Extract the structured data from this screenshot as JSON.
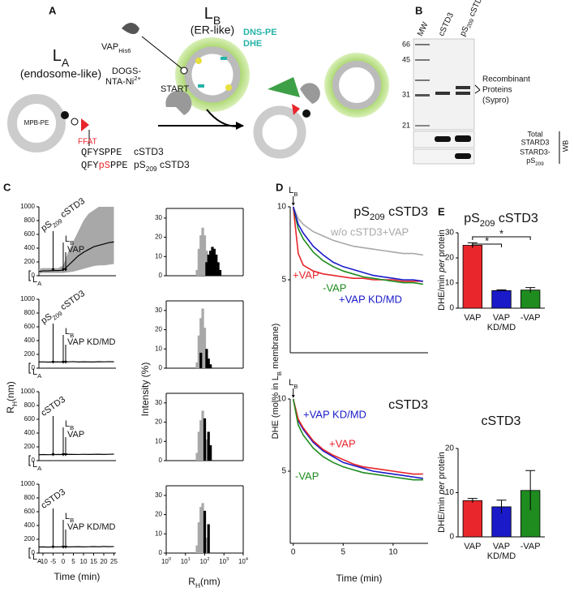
{
  "figure": {
    "panel_labels": [
      "A",
      "B",
      "C",
      "D",
      "E"
    ],
    "diagram": {
      "lb_title": [
        {
          "t": "L"
        },
        {
          "t": "B",
          "sub": true
        }
      ],
      "lb_sub": "(ER-like)",
      "la_title": [
        {
          "t": "L"
        },
        {
          "t": "A",
          "sub": true
        }
      ],
      "la_sub": "(endosome-like)",
      "vap": [
        {
          "t": "VAP"
        },
        {
          "t": "His6",
          "sub": true
        }
      ],
      "dogs1": "DOGS-",
      "dogs2": [
        {
          "t": "NTA-Ni"
        },
        {
          "t": "2+",
          "sup": true
        }
      ],
      "dns": "DNS-PE",
      "dhe": "DHE",
      "start": "START",
      "mpb": "MPB-PE",
      "ffat": "FFAT",
      "seq1": "QFYSPPE",
      "seq1_name": "cSTD3",
      "seq2": [
        {
          "t": "QFY"
        },
        {
          "t": "pS",
          "color": "#e8262b"
        },
        {
          "t": "PPE"
        }
      ],
      "seq2_name": [
        {
          "t": "pS"
        },
        {
          "t": "209",
          "sub": true
        },
        {
          "t": " cSTD3"
        }
      ]
    },
    "gel": {
      "lanes": [
        "MW",
        "cSTD3",
        [
          {
            "t": "pS"
          },
          {
            "t": "209",
            "sub": true
          },
          {
            "t": " cSTD3"
          }
        ]
      ],
      "mw": [
        "66",
        "45",
        "31",
        "21"
      ],
      "sypro": [
        "Recombinant",
        "Proteins",
        "(Sypro)"
      ],
      "total": [
        "Total",
        "STARD3"
      ],
      "phospho": [
        "STARD3-",
        [
          {
            "t": "pS"
          },
          {
            "t": "209",
            "sub": true
          }
        ]
      ],
      "wb": "WB"
    }
  },
  "chart_data": [
    {
      "type": "line",
      "x": [
        -12,
        -10,
        -7.5,
        -5,
        -2.5,
        0,
        2.5,
        5,
        7.5,
        10,
        12.5,
        15,
        17.5,
        20,
        22.5,
        25
      ],
      "series": [
        {
          "color": "#000000",
          "values": [
            60,
            70,
            70,
            75,
            75,
            80,
            150,
            220,
            290,
            340,
            380,
            420,
            440,
            460,
            480,
            490
          ]
        }
      ],
      "band": {
        "color": "#a8a8a8",
        "upper": [
          100,
          110,
          110,
          110,
          110,
          150,
          350,
          500,
          650,
          800,
          900,
          950,
          1000,
          1000,
          1000,
          1000
        ],
        "lower": [
          30,
          40,
          40,
          40,
          40,
          40,
          50,
          60,
          80,
          100,
          120,
          140,
          150,
          150,
          160,
          170
        ]
      },
      "xlim": [
        -12,
        26
      ],
      "ylim": [
        0,
        1000
      ],
      "yticks": [
        0,
        200,
        400,
        600,
        800,
        1000
      ],
      "annotations": [
        [
          {
            "t": "pS"
          },
          {
            "t": "209",
            "sub": true
          },
          {
            "t": " cSTD3"
          }
        ],
        [
          {
            "t": "L"
          },
          {
            "t": "B",
            "sub": true
          }
        ],
        "VAP",
        [
          {
            "t": "L"
          },
          {
            "t": "A",
            "sub": true
          }
        ]
      ],
      "ylabel": [
        {
          "t": "R"
        },
        {
          "t": "H",
          "sub": true
        },
        {
          "t": "(nm)"
        }
      ]
    },
    {
      "type": "line",
      "x": [
        -12,
        -10,
        -7.5,
        -5,
        -2.5,
        0,
        2.5,
        5,
        7.5,
        10,
        12.5,
        15,
        17.5,
        20,
        22.5,
        25
      ],
      "series": [
        {
          "color": "#000000",
          "values": [
            90,
            92,
            88,
            90,
            91,
            89,
            92,
            95,
            90,
            93,
            91,
            90,
            94,
            92,
            95,
            93
          ]
        }
      ],
      "xlim": [
        -12,
        26
      ],
      "ylim": [
        0,
        1000
      ],
      "yticks": [
        0,
        200,
        400,
        600,
        800,
        1000
      ],
      "annotations": [
        [
          {
            "t": "pS"
          },
          {
            "t": "209",
            "sub": true
          },
          {
            "t": " cSTD3"
          }
        ],
        [
          {
            "t": "L"
          },
          {
            "t": "B",
            "sub": true
          }
        ],
        "VAP KD/MD",
        [
          {
            "t": "L"
          },
          {
            "t": "A",
            "sub": true
          }
        ]
      ]
    },
    {
      "type": "line",
      "x": [
        -12,
        -10,
        -7.5,
        -5,
        -2.5,
        0,
        2.5,
        5,
        7.5,
        10,
        12.5,
        15,
        17.5,
        20,
        22.5,
        25
      ],
      "series": [
        {
          "color": "#000000",
          "values": [
            85,
            88,
            86,
            87,
            90,
            88,
            91,
            90,
            89,
            92,
            90,
            91,
            93,
            90,
            92,
            94
          ]
        }
      ],
      "xlim": [
        -12,
        26
      ],
      "ylim": [
        0,
        1000
      ],
      "yticks": [
        0,
        200,
        400,
        600,
        800,
        1000
      ],
      "annotations": [
        "cSTD3",
        [
          {
            "t": "L"
          },
          {
            "t": "B",
            "sub": true
          }
        ],
        "VAP",
        [
          {
            "t": "L"
          },
          {
            "t": "A",
            "sub": true
          }
        ]
      ]
    },
    {
      "type": "line",
      "x": [
        -12,
        -10,
        -7.5,
        -5,
        -2.5,
        0,
        2.5,
        5,
        7.5,
        10,
        12.5,
        15,
        17.5,
        20,
        22.5,
        25
      ],
      "series": [
        {
          "color": "#000000",
          "values": [
            88,
            90,
            87,
            89,
            90,
            92,
            90,
            91,
            93,
            90,
            92,
            94,
            91,
            96,
            93,
            95
          ]
        }
      ],
      "xlim": [
        -12,
        26
      ],
      "ylim": [
        0,
        1000
      ],
      "yticks": [
        0,
        200,
        400,
        600,
        800,
        1000
      ],
      "xticks": [
        -10,
        -5,
        0,
        5,
        10,
        15,
        20,
        25
      ],
      "xlabel": "Time (min)",
      "annotations": [
        "cSTD3",
        [
          {
            "t": "L"
          },
          {
            "t": "B",
            "sub": true
          }
        ],
        "VAP KD/MD",
        [
          {
            "t": "L"
          },
          {
            "t": "A",
            "sub": true
          }
        ]
      ]
    },
    {
      "type": "bar",
      "log_x": true,
      "xlim": [
        1,
        10000
      ],
      "ylim": [
        0,
        35
      ],
      "yticks": [
        0,
        10,
        20,
        30
      ],
      "series": [
        {
          "color": "#a8a8a8",
          "x": [
            40,
            50,
            63,
            79,
            100,
            126,
            158
          ],
          "values": [
            3,
            14,
            21,
            25,
            21,
            13,
            3
          ]
        },
        {
          "color": "#000000",
          "x": [
            126,
            158,
            200,
            251,
            316,
            398,
            501,
            631
          ],
          "values": [
            7,
            11,
            13,
            15,
            14,
            11,
            7,
            3
          ]
        }
      ]
    },
    {
      "type": "bar",
      "log_x": true,
      "xlim": [
        1,
        10000
      ],
      "ylim": [
        0,
        35
      ],
      "yticks": [
        0,
        10,
        20,
        30
      ],
      "series": [
        {
          "color": "#a8a8a8",
          "x": [
            40,
            50,
            63,
            79,
            100,
            126,
            158
          ],
          "values": [
            3,
            17,
            26,
            31,
            21,
            9,
            2
          ]
        },
        {
          "color": "#000000",
          "x": [
            63,
            126,
            158,
            200
          ],
          "values": [
            8,
            10,
            5,
            2
          ]
        }
      ],
      "ylabel": "Intensity (%)"
    },
    {
      "type": "bar",
      "log_x": true,
      "xlim": [
        1,
        10000
      ],
      "ylim": [
        0,
        35
      ],
      "yticks": [
        0,
        10,
        20,
        30
      ],
      "series": [
        {
          "color": "#a8a8a8",
          "x": [
            40,
            50,
            63,
            79,
            100,
            126
          ],
          "values": [
            4,
            15,
            21,
            26,
            20,
            11
          ]
        },
        {
          "color": "#000000",
          "x": [
            100,
            158,
            200
          ],
          "values": [
            22,
            15,
            8
          ]
        }
      ]
    },
    {
      "type": "bar",
      "log_x": true,
      "xlim": [
        1,
        10000
      ],
      "ylim": [
        0,
        35
      ],
      "yticks": [
        0,
        10,
        20,
        30
      ],
      "series": [
        {
          "color": "#a8a8a8",
          "x": [
            40,
            50,
            63,
            79,
            100,
            126
          ],
          "values": [
            4,
            16,
            24,
            26,
            20,
            8
          ]
        },
        {
          "color": "#000000",
          "x": [
            100,
            158
          ],
          "values": [
            22,
            15
          ]
        }
      ],
      "xticks": [
        {
          "value": 1,
          "label": [
            {
              "t": "10"
            },
            {
              "t": "0",
              "sup": true
            }
          ]
        },
        {
          "value": 10,
          "label": [
            {
              "t": "10"
            },
            {
              "t": "1",
              "sup": true
            }
          ]
        },
        {
          "value": 100,
          "label": [
            {
              "t": "10"
            },
            {
              "t": "2",
              "sup": true
            }
          ]
        },
        {
          "value": 1000,
          "label": [
            {
              "t": "10"
            },
            {
              "t": "3",
              "sup": true
            }
          ]
        },
        {
          "value": 10000,
          "label": [
            {
              "t": "10"
            },
            {
              "t": "4",
              "sup": true
            }
          ]
        }
      ],
      "xlabel": [
        {
          "t": "R"
        },
        {
          "t": "H",
          "sub": true
        },
        {
          "t": "(nm)"
        }
      ]
    },
    {
      "type": "line",
      "title": [
        {
          "t": "pS"
        },
        {
          "t": "209",
          "sub": true
        },
        {
          "t": " cSTD3"
        }
      ],
      "x": [
        0,
        0.5,
        1,
        2,
        3,
        4,
        5,
        6,
        7,
        8,
        9,
        10,
        11,
        12,
        13
      ],
      "xlim": [
        -0.3,
        13.5
      ],
      "ylim": [
        0,
        10
      ],
      "yticks": [
        5,
        10
      ],
      "annotations": [
        [
          {
            "t": "L"
          },
          {
            "t": "B",
            "sub": true
          }
        ]
      ],
      "series": [
        {
          "name": "w/o cSTD3+VAP",
          "color": "#a8a8a8",
          "values": [
            10,
            9.2,
            8.8,
            8.3,
            8.0,
            7.7,
            7.5,
            7.3,
            7.2,
            7.1,
            7.0,
            6.9,
            6.8,
            6.8,
            6.7
          ]
        },
        {
          "name": "+VAP",
          "color": "#e8262b",
          "values": [
            10,
            6.8,
            6.0,
            5.6,
            5.4,
            5.3,
            5.2,
            5.1,
            5.1,
            5.0,
            5.0,
            5.0,
            4.9,
            4.9,
            4.9
          ]
        },
        {
          "name": "-VAP",
          "color": "#1e8c1e",
          "values": [
            10,
            8.5,
            7.8,
            6.9,
            6.3,
            5.9,
            5.6,
            5.4,
            5.2,
            5.1,
            5.0,
            4.9,
            4.8,
            4.8,
            4.7
          ]
        },
        {
          "name": "+VAP KD/MD",
          "color": "#1a1ac8",
          "values": [
            10,
            8.8,
            8.2,
            7.3,
            6.7,
            6.2,
            5.9,
            5.7,
            5.5,
            5.3,
            5.2,
            5.1,
            5.0,
            5.0,
            4.9
          ]
        }
      ],
      "ylabel": [
        {
          "t": "DHE (mol% in L"
        },
        {
          "t": "B",
          "sub": true
        },
        {
          "t": " membrane)"
        }
      ]
    },
    {
      "type": "line",
      "title": "cSTD3",
      "x": [
        0,
        0.5,
        1,
        2,
        3,
        4,
        5,
        6,
        7,
        8,
        9,
        10,
        11,
        12,
        13
      ],
      "xlim": [
        -0.3,
        13.5
      ],
      "ylim": [
        0,
        10
      ],
      "yticks": [
        5,
        10
      ],
      "xticks": [
        0,
        5,
        10
      ],
      "xlabel": "Time (min)",
      "annotations": [
        [
          {
            "t": "L"
          },
          {
            "t": "B",
            "sub": true
          }
        ]
      ],
      "series": [
        {
          "name": "+VAP KD/MD",
          "color": "#1a1ac8",
          "values": [
            10,
            8.5,
            7.9,
            7.0,
            6.4,
            6.0,
            5.6,
            5.4,
            5.2,
            5.0,
            4.9,
            4.8,
            4.7,
            4.6,
            4.5
          ]
        },
        {
          "name": "+VAP",
          "color": "#e8262b",
          "values": [
            10,
            8.6,
            8.0,
            7.1,
            6.5,
            6.1,
            5.8,
            5.5,
            5.3,
            5.2,
            5.1,
            5.0,
            4.9,
            4.8,
            4.8
          ]
        },
        {
          "name": "-VAP",
          "color": "#1e8c1e",
          "values": [
            10,
            8.2,
            7.5,
            6.6,
            6.0,
            5.6,
            5.3,
            5.1,
            4.9,
            4.8,
            4.7,
            4.6,
            4.5,
            4.4,
            4.4
          ]
        }
      ]
    },
    {
      "type": "errorbar",
      "title": [
        {
          "t": "pS"
        },
        {
          "t": "209",
          "sub": true
        },
        {
          "t": " cSTD3"
        }
      ],
      "categories": [
        [
          "VAP"
        ],
        [
          "VAP",
          "KD/MD"
        ],
        [
          "-VAP"
        ]
      ],
      "values": [
        25,
        7,
        7.2
      ],
      "errors": [
        1,
        0.3,
        1
      ],
      "colors": [
        "#e8262b",
        "#1a1ac8",
        "#1e8c1e"
      ],
      "ylim": [
        0,
        30
      ],
      "yticks": [
        0,
        10,
        20,
        30
      ],
      "significance": [
        {
          "from": 0,
          "to": 1,
          "label": "*"
        },
        {
          "from": 0,
          "to": 2,
          "label": "*"
        }
      ],
      "ylabel": [
        {
          "t": "DHE/min "
        },
        {
          "t": "per",
          "italic": true
        },
        {
          "t": " protein"
        }
      ]
    },
    {
      "type": "errorbar",
      "title": "cSTD3",
      "categories": [
        [
          "VAP"
        ],
        [
          "VAP",
          "KD/MD"
        ],
        [
          "-VAP"
        ]
      ],
      "values": [
        8.2,
        6.8,
        10.5
      ],
      "errors": [
        0.5,
        1.5,
        4.5
      ],
      "colors": [
        "#e8262b",
        "#1a1ac8",
        "#1e8c1e"
      ],
      "ylim": [
        0,
        20
      ],
      "yticks": [
        0,
        10,
        20
      ],
      "ylabel": [
        {
          "t": "DHE/min "
        },
        {
          "t": "per",
          "italic": true
        },
        {
          "t": " protein"
        }
      ]
    }
  ]
}
